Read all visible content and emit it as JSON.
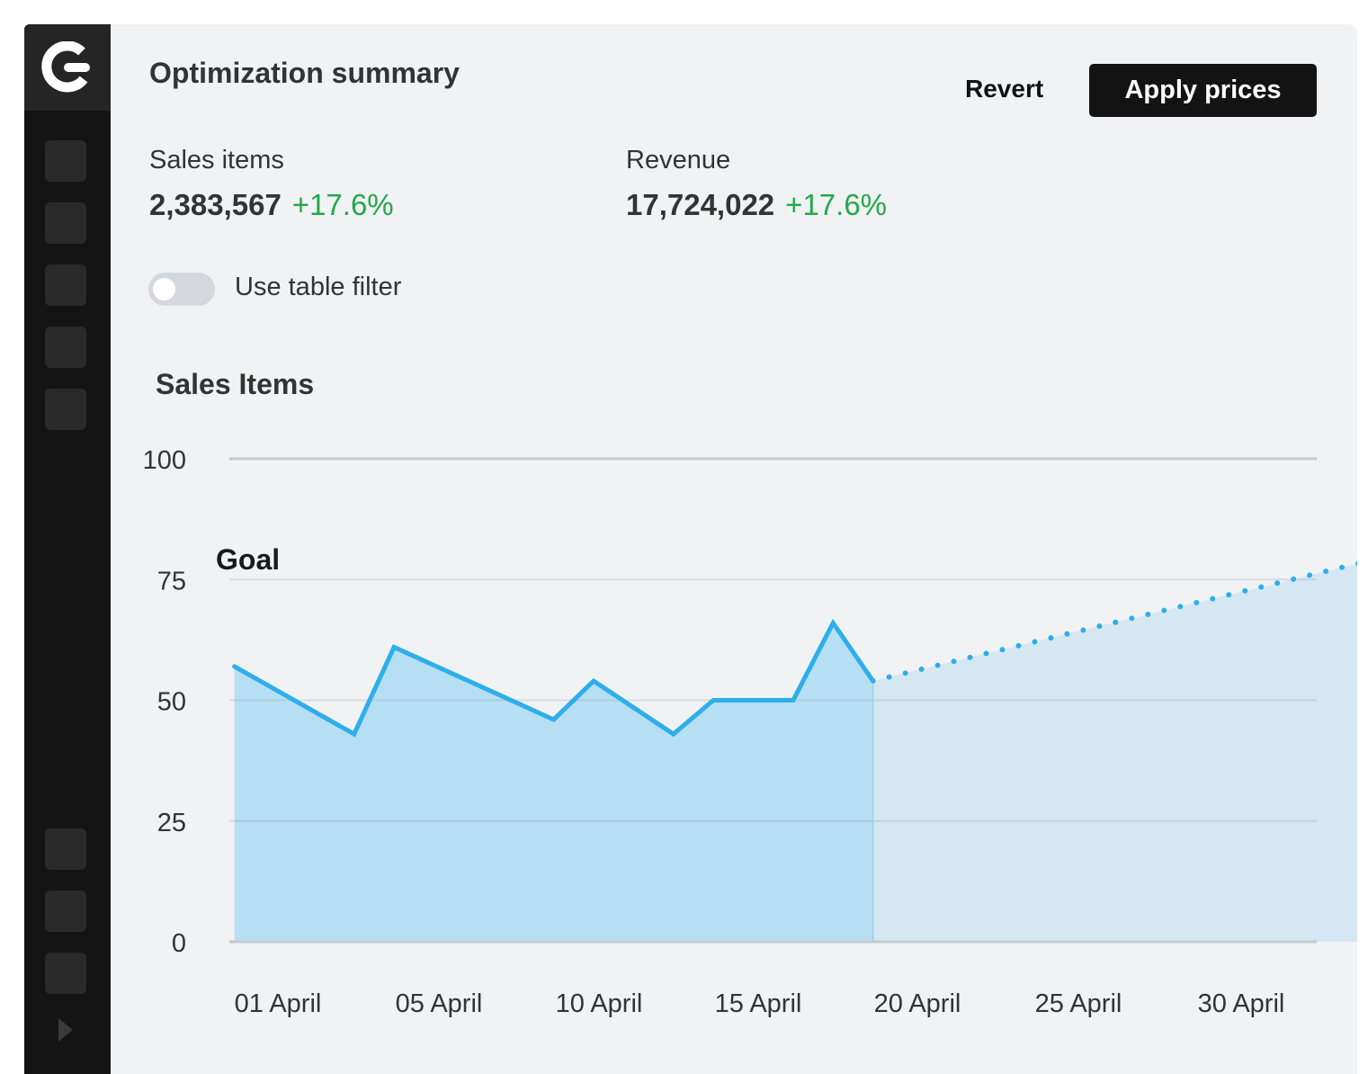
{
  "sidebar": {
    "logo_icon": "brand-logo-icon",
    "expand_icon": "chevron-right-icon",
    "nav_items_top": 5,
    "nav_items_bottom": 3
  },
  "header": {
    "title": "Optimization summary",
    "revert_label": "Revert",
    "apply_label": "Apply prices"
  },
  "metrics": [
    {
      "label": "Sales items",
      "value": "2,383,567",
      "delta": "+17.6%"
    },
    {
      "label": "Revenue",
      "value": "17,724,022",
      "delta": "+17.6%"
    }
  ],
  "filter_toggle": {
    "label": "Use table filter",
    "on": false
  },
  "colors": {
    "accent_line": "#2eaeea",
    "positive": "#22a84a",
    "sidebar_bg": "#141414",
    "primary_button": "#131313"
  },
  "chart_data": {
    "type": "area",
    "title": "Sales Items",
    "annotation": "Goal",
    "ylim": [
      0,
      100
    ],
    "y_ticks": [
      "0",
      "25",
      "50",
      "75",
      "100"
    ],
    "x_ticks": [
      "01 April",
      "05 April",
      "10 April",
      "15 April",
      "20 April",
      "25 April",
      "30 April"
    ],
    "grid": true,
    "series": [
      {
        "style": "solid",
        "x": [
          "2024-03-31",
          "2024-04-03",
          "2024-04-04",
          "2024-04-08",
          "2024-04-09",
          "2024-04-11",
          "2024-04-12",
          "2024-04-14",
          "2024-04-15",
          "2024-04-16"
        ],
        "y": [
          57,
          43,
          61,
          46,
          54,
          43,
          50,
          50,
          66,
          54
        ]
      },
      {
        "style": "dotted",
        "x": [
          "2024-04-16",
          "2024-05-01"
        ],
        "y": [
          54,
          84
        ]
      }
    ]
  }
}
